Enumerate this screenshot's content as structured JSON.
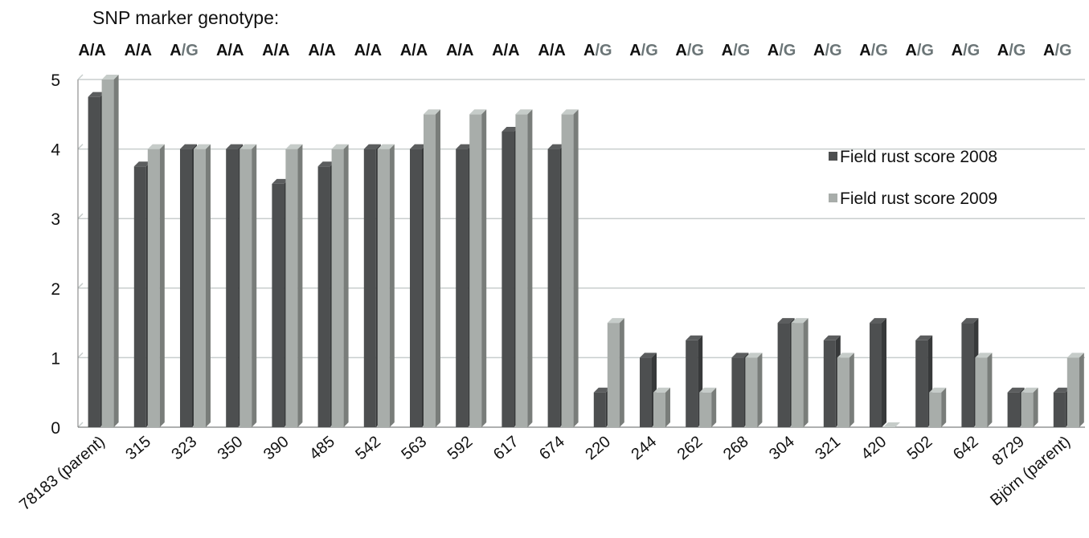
{
  "chart_data": {
    "type": "bar",
    "title": "SNP marker genotype:",
    "genotypes": [
      "A/A",
      "A/A",
      "A/G",
      "A/A",
      "A/A",
      "A/A",
      "A/A",
      "A/A",
      "A/A",
      "A/A",
      "A/A",
      "A/G",
      "A/G",
      "A/G",
      "A/G",
      "A/G",
      "A/G",
      "A/G",
      "A/G",
      "A/G",
      "A/G",
      "A/G"
    ],
    "categories": [
      "78183 (parent)",
      "315",
      "323",
      "350",
      "390",
      "485",
      "542",
      "563",
      "592",
      "617",
      "674",
      "220",
      "244",
      "262",
      "268",
      "304",
      "321",
      "420",
      "502",
      "642",
      "8729",
      "Björn (parent)"
    ],
    "series": [
      {
        "name": "Field rust score 2008",
        "color": "#4d4f50",
        "values": [
          4.75,
          3.75,
          4,
          4,
          3.5,
          3.75,
          4,
          4,
          4,
          4.25,
          4,
          0.5,
          1,
          1.25,
          1,
          1.5,
          1.25,
          1.5,
          1.25,
          1.5,
          0.5,
          0.5
        ]
      },
      {
        "name": "Field rust score 2009",
        "color": "#a8adaa",
        "values": [
          5,
          4,
          4,
          4,
          4,
          4,
          4,
          4.5,
          4.5,
          4.5,
          4.5,
          1.5,
          0.5,
          0.5,
          1,
          1.5,
          1,
          0,
          0.5,
          1,
          0.5,
          1
        ]
      }
    ],
    "ylim": [
      0,
      5
    ],
    "yticks": [
      "0",
      "1",
      "2",
      "3",
      "4",
      "5"
    ],
    "grid": true,
    "legend_position": "right",
    "xlabel": "",
    "ylabel": ""
  },
  "colors": {
    "genotype_A": "#111111",
    "genotype_G": "#6b7577",
    "gridline": "#c8cecd",
    "axis": "#7a7a7a"
  }
}
